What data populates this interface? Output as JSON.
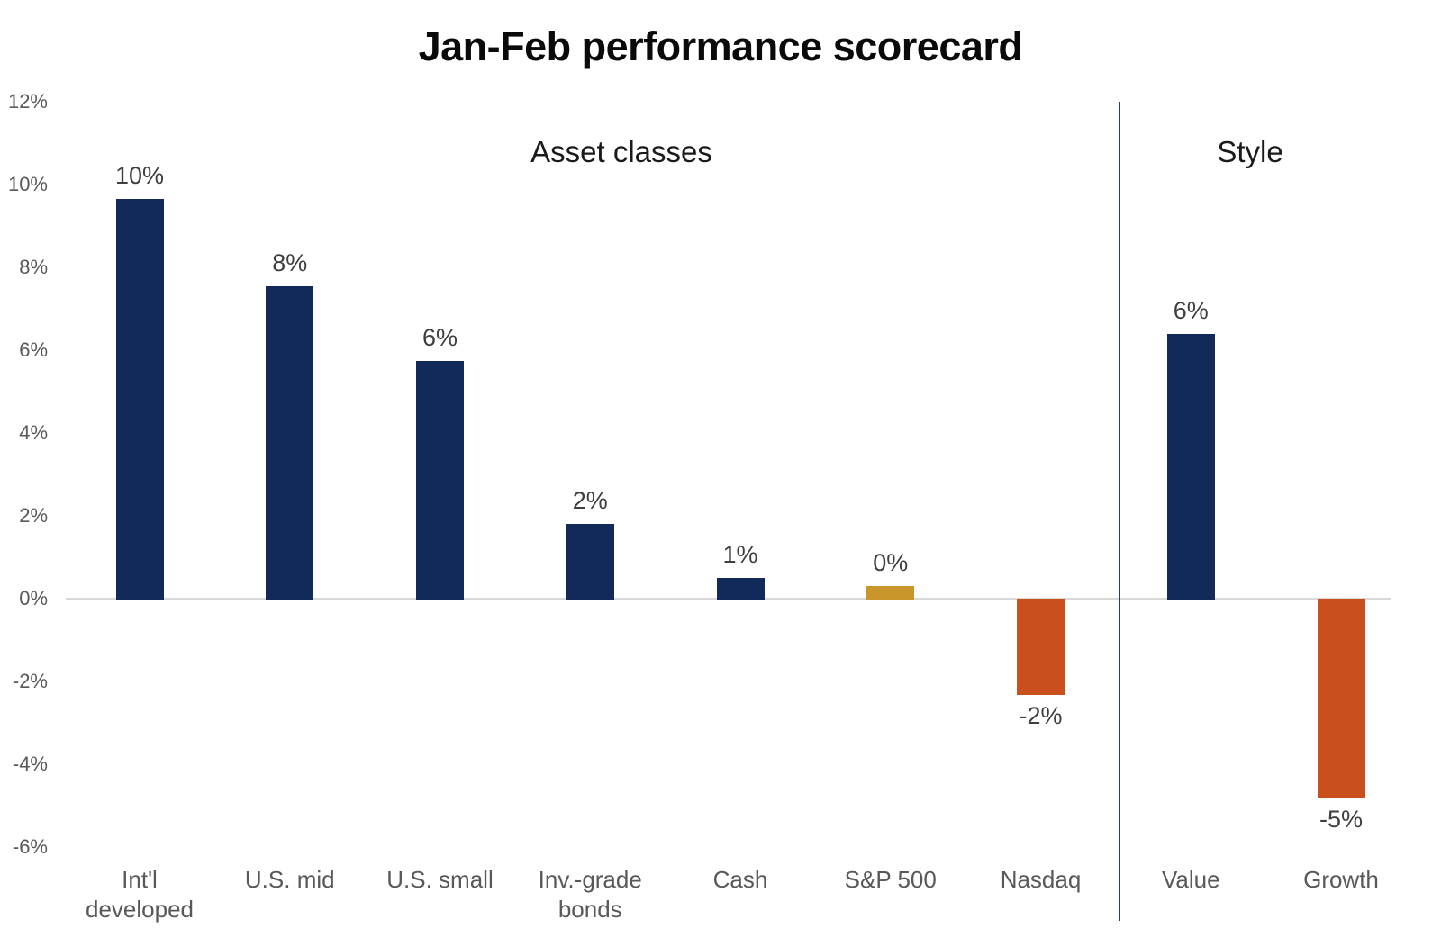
{
  "title": "Jan-Feb performance scorecard",
  "colors": {
    "navy": "#112a5a",
    "gold": "#c8962b",
    "orange": "#c94f1d",
    "divider_line": "#1f4069",
    "zero_line": "#d9d9d9",
    "axis_text": "#595959",
    "value_label_text": "#3f3f3f",
    "title_text": "#0a0a0a"
  },
  "chart_data": {
    "type": "bar",
    "title": "Jan-Feb performance scorecard",
    "xlabel": "",
    "ylabel": "",
    "ylim": [
      -6,
      12
    ],
    "grid": "zero-line-only",
    "legend": "none",
    "sections": [
      {
        "label": "Asset classes",
        "bar_count": 7
      },
      {
        "label": "Style",
        "bar_count": 2
      }
    ],
    "y_axis": {
      "ticks": [
        "12%",
        "10%",
        "8%",
        "6%",
        "4%",
        "2%",
        "0%",
        "-2%",
        "-4%",
        "-6%"
      ],
      "tick_values": [
        12,
        10,
        8,
        6,
        4,
        2,
        0,
        -2,
        -4,
        -6
      ],
      "step": 2
    },
    "bars": [
      {
        "name": "intl-developed",
        "category": "Int'l developed",
        "category_lines": [
          "Int'l",
          "developed"
        ],
        "label": "10%",
        "value": 10,
        "drawn_value": 9.65,
        "color": "navy",
        "section": "Asset classes"
      },
      {
        "name": "us-mid",
        "category": "U.S. mid",
        "category_lines": [
          "U.S. mid"
        ],
        "label": "8%",
        "value": 8,
        "drawn_value": 7.55,
        "color": "navy",
        "section": "Asset classes"
      },
      {
        "name": "us-small",
        "category": "U.S. small",
        "category_lines": [
          "U.S. small"
        ],
        "label": "6%",
        "value": 6,
        "drawn_value": 5.75,
        "color": "navy",
        "section": "Asset classes"
      },
      {
        "name": "inv-grade-bonds",
        "category": "Inv.-grade bonds",
        "category_lines": [
          "Inv.-grade",
          "bonds"
        ],
        "label": "2%",
        "value": 2,
        "drawn_value": 1.8,
        "color": "navy",
        "section": "Asset classes"
      },
      {
        "name": "cash",
        "category": "Cash",
        "category_lines": [
          "Cash"
        ],
        "label": "1%",
        "value": 1,
        "drawn_value": 0.5,
        "color": "navy",
        "section": "Asset classes"
      },
      {
        "name": "sp-500",
        "category": "S&P 500",
        "category_lines": [
          "S&P 500"
        ],
        "label": "0%",
        "value": 0,
        "drawn_value": 0.3,
        "color": "gold",
        "section": "Asset classes"
      },
      {
        "name": "nasdaq",
        "category": "Nasdaq",
        "category_lines": [
          "Nasdaq"
        ],
        "label": "-2%",
        "value": -2,
        "drawn_value": -2.3,
        "color": "orange",
        "section": "Asset classes"
      },
      {
        "name": "value",
        "category": "Value",
        "category_lines": [
          "Value"
        ],
        "label": "6%",
        "value": 6,
        "drawn_value": 6.4,
        "color": "navy",
        "section": "Style"
      },
      {
        "name": "growth",
        "category": "Growth",
        "category_lines": [
          "Growth"
        ],
        "label": "-5%",
        "value": -5,
        "drawn_value": -4.8,
        "color": "orange",
        "section": "Style"
      }
    ]
  }
}
